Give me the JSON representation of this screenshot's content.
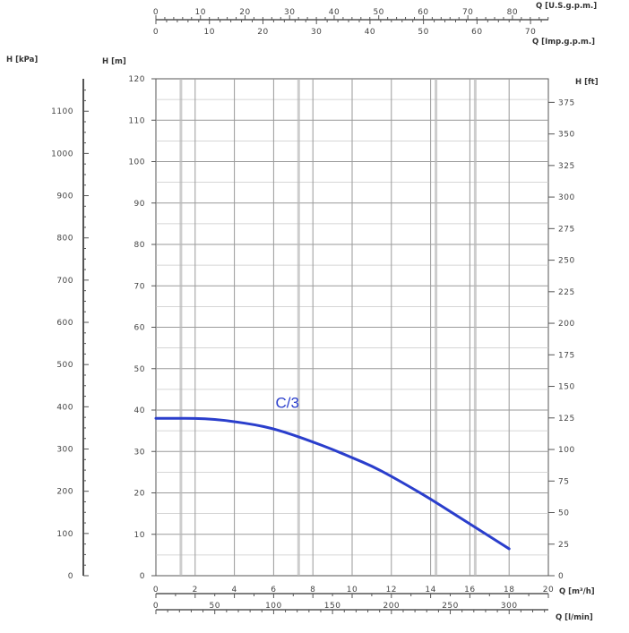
{
  "colors": {
    "background": "#ffffff",
    "axis": "#555555",
    "grid_major": "#9a9a9a",
    "grid_minor": "#c8c8c8",
    "curve": "#2a3ecc",
    "text": "#444444"
  },
  "chart_data": {
    "type": "line",
    "title": "",
    "grid": true,
    "axes": {
      "primary_y": {
        "label": "H [m]",
        "min": 0,
        "max": 120,
        "ticks": [
          0,
          10,
          20,
          30,
          40,
          50,
          60,
          70,
          80,
          90,
          100,
          110,
          120
        ]
      },
      "left_y": {
        "label": "H [kPa]",
        "min": 0,
        "max": 1176.8,
        "ticks": [
          0,
          100,
          200,
          300,
          400,
          500,
          600,
          700,
          800,
          900,
          1000,
          1100
        ]
      },
      "right_y": {
        "label": "H [ft]",
        "min": 0,
        "max": 393.7,
        "ticks": [
          0,
          25,
          50,
          75,
          100,
          125,
          150,
          175,
          200,
          225,
          250,
          275,
          300,
          325,
          350,
          375
        ]
      },
      "x_m3h": {
        "label": "Q [m³/h]",
        "min": 0,
        "max": 20,
        "ticks": [
          0,
          2,
          4,
          6,
          8,
          10,
          12,
          14,
          16,
          18,
          20
        ]
      },
      "x_lmin": {
        "label": "Q [l/min]",
        "min": 0,
        "max": 333.3,
        "ticks": [
          0,
          50,
          100,
          150,
          200,
          250,
          300
        ]
      },
      "top_usgpm": {
        "label": "Q [U.S.g.p.m.]",
        "min": 0,
        "max": 88.06,
        "ticks": [
          0,
          10,
          20,
          30,
          40,
          50,
          60,
          70,
          80
        ]
      },
      "top_impgpm": {
        "label": "Q [Imp.g.p.m.]",
        "min": 0,
        "max": 73.33,
        "ticks": [
          0,
          10,
          20,
          30,
          40,
          50,
          60,
          70
        ]
      }
    },
    "series": [
      {
        "name": "C/3",
        "x": [
          0,
          1,
          2,
          3,
          4,
          5,
          6,
          7,
          8,
          9,
          10,
          11,
          12,
          13,
          14,
          15,
          16,
          17,
          18
        ],
        "y": [
          38,
          38,
          38,
          37.8,
          37.2,
          36.5,
          35.5,
          34,
          32.3,
          30.5,
          28.5,
          26.5,
          24,
          21.3,
          18.5,
          15.5,
          12.5,
          9.5,
          6.5
        ]
      }
    ]
  }
}
